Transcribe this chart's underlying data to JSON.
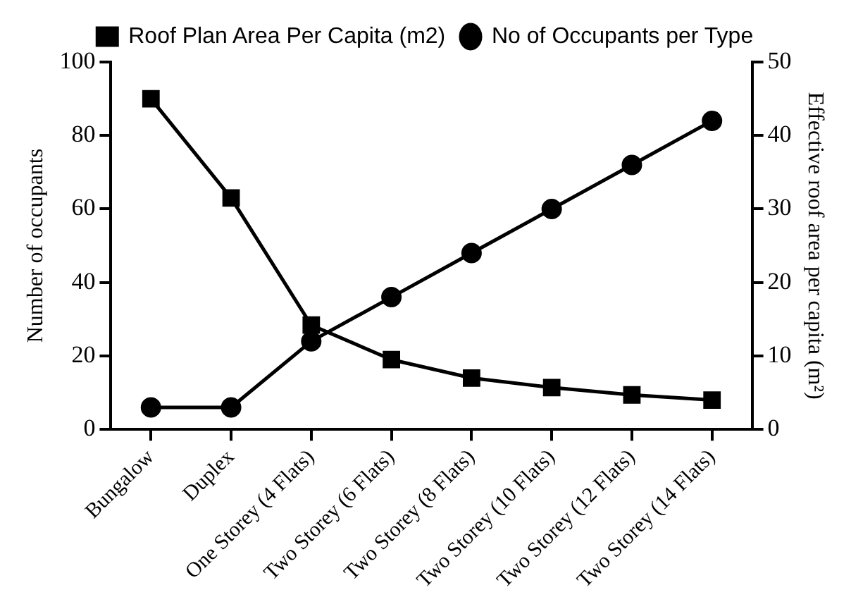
{
  "chart_data": {
    "type": "line",
    "ylabel": "Number of occupants",
    "y2label": "Effective roof area per capita (m²)",
    "categories": [
      "Bungalow",
      "Duplex",
      "One Storey (4 Flats)",
      "Two Storey (6 Flats)",
      "Two Storey (8 Flats)",
      "Two Storey (10 Flats)",
      "Two Storey (12 Flats)",
      "Two Storey (14 Flats)"
    ],
    "series": [
      {
        "name": "Roof Plan Area Per Capita (m2)",
        "color": "#000000",
        "marker": "square",
        "axis": "y2",
        "values": [
          45,
          31.5,
          14.2,
          9.5,
          7,
          5.7,
          4.7,
          4
        ]
      },
      {
        "name": "No of Occupants per Type",
        "color": "#000000",
        "marker": "circle",
        "values": [
          6,
          6,
          24,
          36,
          48,
          60,
          72,
          84
        ]
      }
    ],
    "ylim": [
      0,
      100
    ],
    "yticks": [
      0,
      20,
      40,
      60,
      80,
      100
    ],
    "y2lim": [
      0,
      50
    ],
    "y2ticks": [
      0,
      10,
      20,
      30,
      40,
      50
    ],
    "grid": false,
    "legend": "top",
    "line_style": "solid"
  }
}
